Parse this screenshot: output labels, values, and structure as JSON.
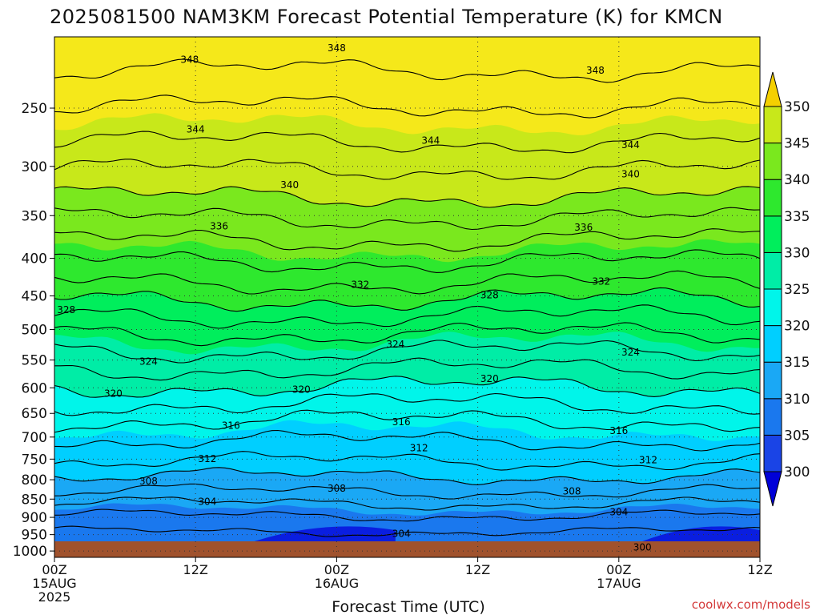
{
  "chart_data": {
    "type": "heatmap",
    "title": "2025081500 NAM3KM Forecast Potential Temperature (K) for KMCN",
    "xlabel": "Forecast Time (UTC)",
    "ylabel": "",
    "x_ticks": [
      {
        "hour": 0,
        "line1": "00Z",
        "line2": "15AUG",
        "line3": "2025"
      },
      {
        "hour": 12,
        "line1": "12Z",
        "line2": "",
        "line3": ""
      },
      {
        "hour": 24,
        "line1": "00Z",
        "line2": "16AUG",
        "line3": ""
      },
      {
        "hour": 36,
        "line1": "12Z",
        "line2": "",
        "line3": ""
      },
      {
        "hour": 48,
        "line1": "00Z",
        "line2": "17AUG",
        "line3": ""
      },
      {
        "hour": 60,
        "line1": "12Z",
        "line2": "",
        "line3": ""
      }
    ],
    "x_range_hours": [
      0,
      60
    ],
    "y_ticks_hpa": [
      250,
      300,
      350,
      400,
      450,
      500,
      550,
      600,
      650,
      700,
      750,
      800,
      850,
      900,
      950,
      1000
    ],
    "y_scale": "log-pressure",
    "y_range_hpa": [
      1020,
      200
    ],
    "surface_pressure_hpa": 1000,
    "color_levels": [
      300,
      305,
      310,
      315,
      320,
      325,
      330,
      335,
      340,
      345,
      350
    ],
    "color_scale": [
      "#0000d8",
      "#1a44e6",
      "#1a78ee",
      "#1aa8f5",
      "#00cfff",
      "#00f5ea",
      "#00eda6",
      "#00ee5c",
      "#2ee82e",
      "#7ae81e",
      "#c8e81a",
      "#f5e81a",
      "#f5d000"
    ],
    "ground_color": "#a0522d",
    "grid": true,
    "contour_interval": 4,
    "contours": [
      {
        "theta": 300,
        "pressure_hpa": 990
      },
      {
        "theta": 304,
        "pressure_hpa": 895
      },
      {
        "theta": 308,
        "pressure_hpa": 830
      },
      {
        "theta": 312,
        "pressure_hpa": 755
      },
      {
        "theta": 316,
        "pressure_hpa": 665
      },
      {
        "theta": 320,
        "pressure_hpa": 598
      },
      {
        "theta": 324,
        "pressure_hpa": 535
      },
      {
        "theta": 328,
        "pressure_hpa": 480
      },
      {
        "theta": 332,
        "pressure_hpa": 432
      },
      {
        "theta": 336,
        "pressure_hpa": 378
      },
      {
        "theta": 340,
        "pressure_hpa": 330
      },
      {
        "theta": 344,
        "pressure_hpa": 278
      },
      {
        "theta": 348,
        "pressure_hpa": 222
      }
    ],
    "contour_labels": [
      {
        "text": "348",
        "hour": 11.5,
        "pressure_hpa": 222
      },
      {
        "text": "348",
        "hour": 24.0,
        "pressure_hpa": 212
      },
      {
        "text": "348",
        "hour": 46.0,
        "pressure_hpa": 216
      },
      {
        "text": "344",
        "hour": 12.0,
        "pressure_hpa": 270
      },
      {
        "text": "344",
        "hour": 32.0,
        "pressure_hpa": 273
      },
      {
        "text": "344",
        "hour": 49.0,
        "pressure_hpa": 283
      },
      {
        "text": "340",
        "hour": 20.0,
        "pressure_hpa": 323
      },
      {
        "text": "340",
        "hour": 49.0,
        "pressure_hpa": 316
      },
      {
        "text": "336",
        "hour": 14.0,
        "pressure_hpa": 370
      },
      {
        "text": "336",
        "hour": 45.0,
        "pressure_hpa": 371
      },
      {
        "text": "332",
        "hour": 26.0,
        "pressure_hpa": 428
      },
      {
        "text": "332",
        "hour": 46.5,
        "pressure_hpa": 432
      },
      {
        "text": "328",
        "hour": 1.0,
        "pressure_hpa": 475
      },
      {
        "text": "328",
        "hour": 37.0,
        "pressure_hpa": 463
      },
      {
        "text": "324",
        "hour": 8.0,
        "pressure_hpa": 540
      },
      {
        "text": "324",
        "hour": 29.0,
        "pressure_hpa": 530
      },
      {
        "text": "324",
        "hour": 49.0,
        "pressure_hpa": 540
      },
      {
        "text": "320",
        "hour": 5.0,
        "pressure_hpa": 594
      },
      {
        "text": "320",
        "hour": 21.0,
        "pressure_hpa": 594
      },
      {
        "text": "320",
        "hour": 37.0,
        "pressure_hpa": 586
      },
      {
        "text": "316",
        "hour": 15.0,
        "pressure_hpa": 662
      },
      {
        "text": "316",
        "hour": 29.5,
        "pressure_hpa": 675
      },
      {
        "text": "316",
        "hour": 48.0,
        "pressure_hpa": 675
      },
      {
        "text": "312",
        "hour": 13.0,
        "pressure_hpa": 760
      },
      {
        "text": "312",
        "hour": 31.0,
        "pressure_hpa": 742
      },
      {
        "text": "312",
        "hour": 50.5,
        "pressure_hpa": 742
      },
      {
        "text": "308",
        "hour": 8.0,
        "pressure_hpa": 817
      },
      {
        "text": "308",
        "hour": 24.0,
        "pressure_hpa": 830
      },
      {
        "text": "308",
        "hour": 44.0,
        "pressure_hpa": 817
      },
      {
        "text": "304",
        "hour": 13.0,
        "pressure_hpa": 860
      },
      {
        "text": "304",
        "hour": 29.5,
        "pressure_hpa": 945
      },
      {
        "text": "304",
        "hour": 48.0,
        "pressure_hpa": 895
      },
      {
        "text": "300",
        "hour": 50.0,
        "pressure_hpa": 990
      }
    ]
  },
  "colorbar": {
    "tick_labels": [
      "300",
      "305",
      "310",
      "315",
      "320",
      "325",
      "330",
      "335",
      "340",
      "345",
      "350"
    ]
  },
  "credit": "coolwx.com/models"
}
